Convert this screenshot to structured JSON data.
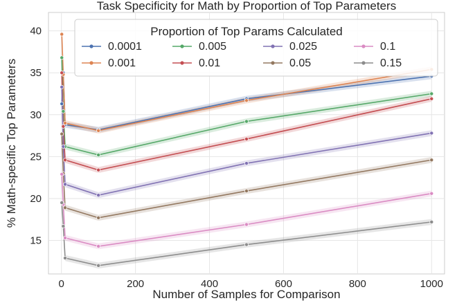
{
  "chart_data": {
    "type": "line",
    "title": "Task Specificity for Math by Proportion of Top Parameters",
    "xlabel": "Number of Samples for Comparison",
    "ylabel": "% Math-specific Top Parameters",
    "xlim": [
      -35,
      1035
    ],
    "ylim": [
      11,
      42.2
    ],
    "xticks": [
      0,
      200,
      400,
      600,
      800,
      1000
    ],
    "yticks": [
      15,
      20,
      25,
      30,
      35,
      40
    ],
    "grid": true,
    "x": [
      1,
      5,
      10,
      100,
      500,
      1000
    ],
    "legend": {
      "title": "Proportion of Top Params Calculated",
      "placement": "top-center",
      "ncol": 4
    },
    "series": [
      {
        "name": "0.0001",
        "color": "#4c72b0",
        "values": [
          31.3,
          35.0,
          28.8,
          28.2,
          31.9,
          34.6
        ]
      },
      {
        "name": "0.001",
        "color": "#dd8452",
        "values": [
          39.6,
          34.8,
          29.0,
          28.1,
          31.7,
          35.4
        ]
      },
      {
        "name": "0.005",
        "color": "#55a868",
        "values": [
          36.8,
          30.4,
          26.2,
          25.2,
          29.2,
          32.5
        ]
      },
      {
        "name": "0.01",
        "color": "#c44e52",
        "values": [
          35.0,
          28.6,
          24.6,
          23.4,
          27.1,
          31.9
        ]
      },
      {
        "name": "0.025",
        "color": "#8172b3",
        "values": [
          33.3,
          26.2,
          21.7,
          20.4,
          24.2,
          27.8
        ]
      },
      {
        "name": "0.05",
        "color": "#937860",
        "values": [
          27.7,
          23.0,
          18.9,
          17.7,
          20.9,
          24.6
        ]
      },
      {
        "name": "0.1",
        "color": "#da8bc3",
        "values": [
          22.9,
          19.3,
          15.3,
          14.3,
          16.9,
          20.6
        ]
      },
      {
        "name": "0.15",
        "color": "#8c8c8c",
        "values": [
          19.5,
          16.7,
          12.9,
          12.0,
          14.5,
          17.2
        ]
      }
    ]
  }
}
